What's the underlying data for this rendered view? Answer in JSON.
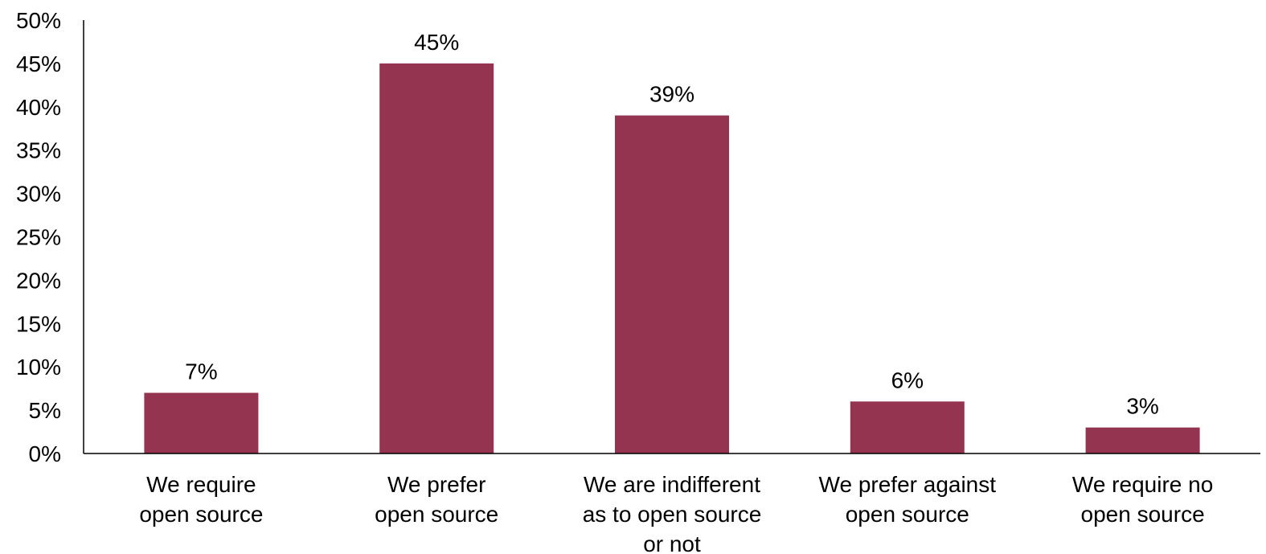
{
  "chart_data": {
    "type": "bar",
    "categories": [
      [
        "We require",
        "open source"
      ],
      [
        "We prefer",
        "open source"
      ],
      [
        "We are indifferent",
        "as to open source",
        "or not"
      ],
      [
        "We prefer against",
        "open source"
      ],
      [
        "We require no",
        "open source"
      ]
    ],
    "values": [
      7,
      45,
      39,
      6,
      3
    ],
    "data_labels": [
      "7%",
      "45%",
      "39%",
      "6%",
      "3%"
    ],
    "y_ticks": [
      0,
      5,
      10,
      15,
      20,
      25,
      30,
      35,
      40,
      45,
      50
    ],
    "y_tick_labels": [
      "0%",
      "5%",
      "10%",
      "15%",
      "20%",
      "25%",
      "30%",
      "35%",
      "40%",
      "45%",
      "50%"
    ],
    "ylim": [
      0,
      50
    ],
    "title": "",
    "xlabel": "",
    "ylabel": "",
    "grid": false,
    "bar_color": "#953450"
  }
}
